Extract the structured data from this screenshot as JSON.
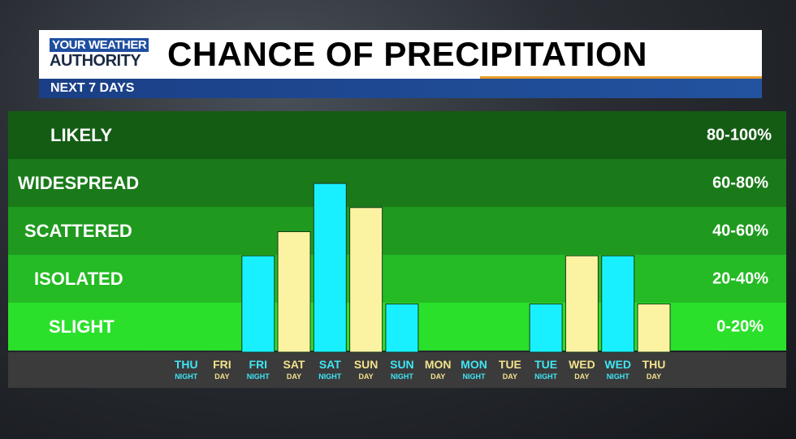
{
  "header": {
    "logo_line1": "YOUR WEATHER",
    "logo_line2": "AUTHORITY",
    "title": "CHANCE OF PRECIPITATION",
    "subtitle": "NEXT 7 DAYS"
  },
  "colors": {
    "night_bar": "#19f0ff",
    "day_bar": "#fbf3a2",
    "night_label": "#3fe6f5",
    "day_label": "#f3e28c",
    "band_colors": [
      "#145c14",
      "#1a7a1a",
      "#1f9a1f",
      "#24bb24",
      "#2be02b"
    ]
  },
  "bands": [
    {
      "label": "LIKELY",
      "range": "80-100%"
    },
    {
      "label": "WIDESPREAD",
      "range": "60-80%"
    },
    {
      "label": "SCATTERED",
      "range": "40-60%"
    },
    {
      "label": "ISOLATED",
      "range": "20-40%"
    },
    {
      "label": "SLIGHT",
      "range": "0-20%"
    }
  ],
  "chart_data": {
    "type": "bar",
    "title": "CHANCE OF PRECIPITATION",
    "subtitle": "NEXT 7 DAYS",
    "ylim": [
      0,
      100
    ],
    "y_unit": "%",
    "categories": [
      {
        "day": "THU",
        "period": "NIGHT"
      },
      {
        "day": "FRI",
        "period": "DAY"
      },
      {
        "day": "FRI",
        "period": "NIGHT"
      },
      {
        "day": "SAT",
        "period": "DAY"
      },
      {
        "day": "SAT",
        "period": "NIGHT"
      },
      {
        "day": "SUN",
        "period": "DAY"
      },
      {
        "day": "SUN",
        "period": "NIGHT"
      },
      {
        "day": "MON",
        "period": "DAY"
      },
      {
        "day": "MON",
        "period": "NIGHT"
      },
      {
        "day": "TUE",
        "period": "DAY"
      },
      {
        "day": "TUE",
        "period": "NIGHT"
      },
      {
        "day": "WED",
        "period": "DAY"
      },
      {
        "day": "WED",
        "period": "NIGHT"
      },
      {
        "day": "THU",
        "period": "DAY"
      }
    ],
    "values": [
      0,
      0,
      40,
      50,
      70,
      60,
      20,
      0,
      0,
      0,
      20,
      40,
      40,
      20
    ],
    "grid": false
  }
}
